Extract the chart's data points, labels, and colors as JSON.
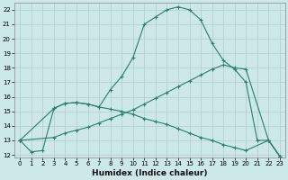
{
  "bg_color": "#cce8e8",
  "grid_color": "#b0cccc",
  "line_color": "#2e7d6e",
  "xlabel": "Humidex (Indice chaleur)",
  "xlim": [
    -0.5,
    23.5
  ],
  "ylim": [
    11.8,
    22.5
  ],
  "xticks": [
    0,
    1,
    2,
    3,
    4,
    5,
    6,
    7,
    8,
    9,
    10,
    11,
    12,
    13,
    14,
    15,
    16,
    17,
    18,
    19,
    20,
    21,
    22,
    23
  ],
  "yticks": [
    12,
    13,
    14,
    15,
    16,
    17,
    18,
    19,
    20,
    21,
    22
  ],
  "line1_x": [
    0,
    1,
    2,
    3,
    4,
    5,
    6,
    7,
    8,
    9,
    10,
    11,
    12,
    13,
    14,
    15,
    16,
    17,
    18,
    19,
    20,
    21,
    22,
    23
  ],
  "line1_y": [
    13.0,
    12.2,
    12.3,
    15.2,
    15.55,
    15.6,
    15.5,
    15.3,
    16.5,
    17.4,
    18.7,
    21.0,
    21.5,
    22.0,
    22.2,
    22.0,
    21.3,
    19.7,
    18.5,
    17.9,
    17.0,
    13.0,
    13.0,
    11.9
  ],
  "line2_x": [
    0,
    3,
    4,
    5,
    6,
    7,
    8,
    9,
    10,
    11,
    12,
    13,
    14,
    15,
    16,
    17,
    18,
    19,
    20,
    22,
    23
  ],
  "line2_y": [
    13.0,
    13.2,
    13.5,
    13.7,
    13.9,
    14.2,
    14.5,
    14.8,
    15.1,
    15.5,
    15.9,
    16.3,
    16.7,
    17.1,
    17.5,
    17.9,
    18.2,
    18.0,
    17.9,
    13.0,
    11.9
  ],
  "line3_x": [
    0,
    3,
    4,
    5,
    6,
    7,
    8,
    9,
    10,
    11,
    12,
    13,
    14,
    15,
    16,
    17,
    18,
    19,
    20,
    22,
    23
  ],
  "line3_y": [
    13.0,
    15.2,
    15.55,
    15.6,
    15.5,
    15.3,
    15.15,
    15.0,
    14.8,
    14.5,
    14.3,
    14.1,
    13.8,
    13.5,
    13.2,
    13.0,
    12.7,
    12.5,
    12.3,
    13.0,
    11.9
  ]
}
